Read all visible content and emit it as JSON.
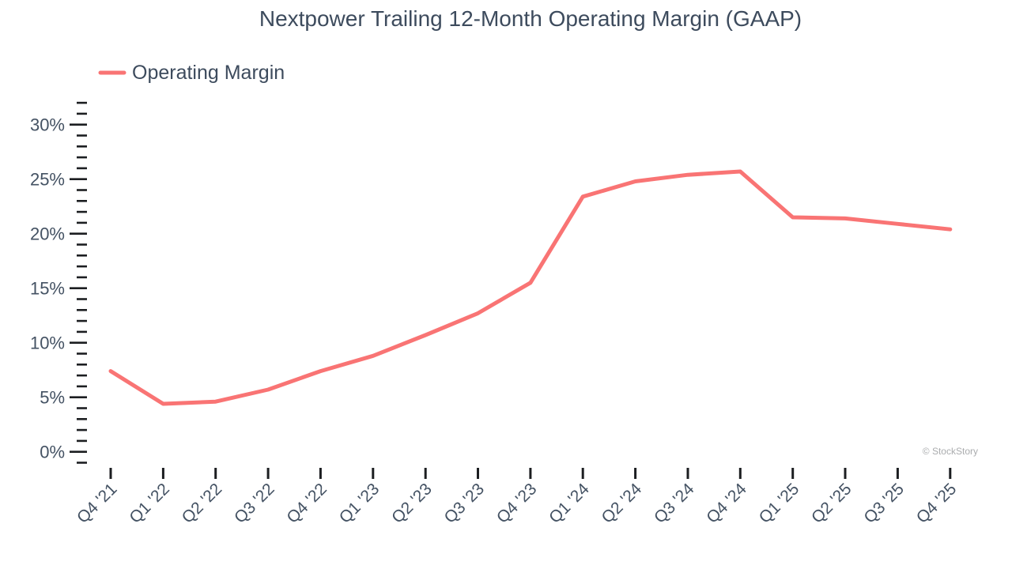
{
  "title": "Nextpower Trailing 12-Month Operating Margin (GAAP)",
  "legend": {
    "label": "Operating Margin",
    "swatch_color": "#f97474"
  },
  "watermark": "© StockStory",
  "colors": {
    "line": "#f97474",
    "text": "#3d4b5d",
    "axis_tick": "#1c1e21",
    "watermark": "#aaacae",
    "background": "#ffffff"
  },
  "chart_data": {
    "type": "line",
    "title": "Nextpower Trailing 12-Month Operating Margin (GAAP)",
    "xlabel": "",
    "ylabel": "",
    "categories": [
      "Q4 '21",
      "Q1 '22",
      "Q2 '22",
      "Q3 '22",
      "Q4 '22",
      "Q1 '23",
      "Q2 '23",
      "Q3 '23",
      "Q4 '23",
      "Q1 '24",
      "Q2 '24",
      "Q3 '24",
      "Q4 '24",
      "Q1 '25",
      "Q2 '25",
      "Q3 '25",
      "Q4 '25"
    ],
    "series": [
      {
        "name": "Operating Margin",
        "color": "#f97474",
        "unit": "%",
        "values": [
          7.4,
          4.4,
          4.6,
          5.7,
          7.4,
          8.8,
          10.7,
          12.7,
          15.5,
          23.4,
          24.8,
          25.4,
          25.7,
          21.5,
          21.4,
          20.9,
          20.4
        ]
      }
    ],
    "y_major_ticks": [
      0,
      5,
      10,
      15,
      20,
      25,
      30
    ],
    "y_major_tick_labels": [
      "0%",
      "5%",
      "10%",
      "15%",
      "20%",
      "25%",
      "30%"
    ],
    "y_minor_tick_step": 1,
    "ylim": [
      -1,
      32
    ],
    "grid": false,
    "legend_position": "top-left",
    "x_label_rotation": -45
  }
}
